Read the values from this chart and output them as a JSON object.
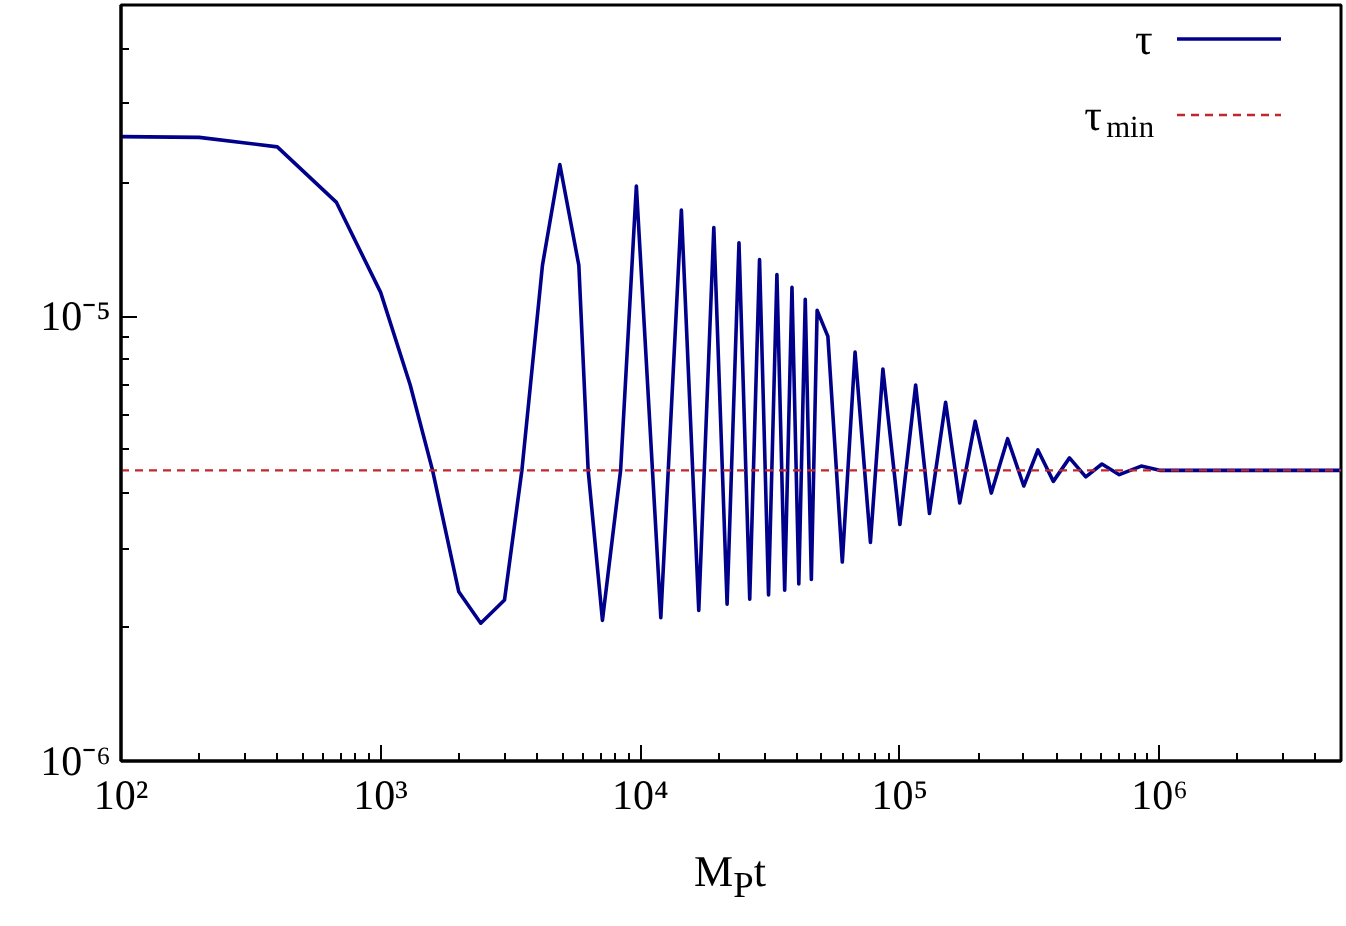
{
  "chart_data": {
    "type": "line",
    "xlabel": "M$_{P}$t",
    "log": "xy",
    "legend": "top right",
    "grid": false,
    "xlim": [
      100,
      5000000
    ],
    "ylim": [
      1e-06,
      5e-05
    ],
    "xticks": [
      {
        "value": 100,
        "label": "10²"
      },
      {
        "value": 1000,
        "label": "10³"
      },
      {
        "value": 10000,
        "label": "10⁴"
      },
      {
        "value": 100000,
        "label": "10⁵"
      },
      {
        "value": 1000000,
        "label": "10⁶"
      }
    ],
    "yticks": [
      {
        "value": 1e-06,
        "label": "10⁻⁶"
      },
      {
        "value": 1e-05,
        "label": "10⁻⁵"
      }
    ],
    "series": [
      {
        "name": "τ",
        "color": "#00008b",
        "line_style": "solid",
        "x": [
          100,
          200,
          400,
          676,
          1000,
          1300,
          1585,
          2000,
          2430,
          3000,
          3500,
          4200,
          4900,
          5800,
          6300,
          7150,
          8400,
          9660,
          12000,
          14400,
          16800,
          19200,
          21600,
          24000,
          26400,
          28800,
          31200,
          33600,
          36000,
          38400,
          40800,
          43200,
          45600,
          48000,
          52800,
          60000,
          67200,
          77000,
          86000,
          100000,
          115000,
          130000,
          150000,
          170000,
          195000,
          225000,
          260000,
          300000,
          340000,
          390000,
          450000,
          520000,
          600000,
          700000,
          850000,
          1000000,
          5000000
        ],
        "values": [
          2.53e-05,
          2.52e-05,
          2.4e-05,
          1.8e-05,
          1.13e-05,
          7e-06,
          4.5e-06,
          2.4e-06,
          2.04e-06,
          2.3e-06,
          4.5e-06,
          1.3e-05,
          2.19e-05,
          1.3e-05,
          4.5e-06,
          2.07e-06,
          4.5e-06,
          1.96e-05,
          2.1e-06,
          1.73e-05,
          2.18e-06,
          1.58e-05,
          2.25e-06,
          1.46e-05,
          2.31e-06,
          1.34e-05,
          2.36e-06,
          1.24e-05,
          2.42e-06,
          1.16e-05,
          2.5e-06,
          1.09e-05,
          2.56e-06,
          1.03e-05,
          9e-06,
          2.8e-06,
          8.3e-06,
          3.1e-06,
          7.6e-06,
          3.4e-06,
          7e-06,
          3.6e-06,
          6.4e-06,
          3.8e-06,
          5.8e-06,
          4e-06,
          5.3e-06,
          4.15e-06,
          5e-06,
          4.25e-06,
          4.8e-06,
          4.35e-06,
          4.65e-06,
          4.4e-06,
          4.6e-06,
          4.5e-06,
          4.5e-06
        ]
      },
      {
        "name": "τ$_{min}$",
        "color": "#c0282d",
        "line_style": "dashed",
        "x": [
          100,
          5000000
        ],
        "values": [
          4.5e-06,
          4.5e-06
        ]
      }
    ]
  }
}
